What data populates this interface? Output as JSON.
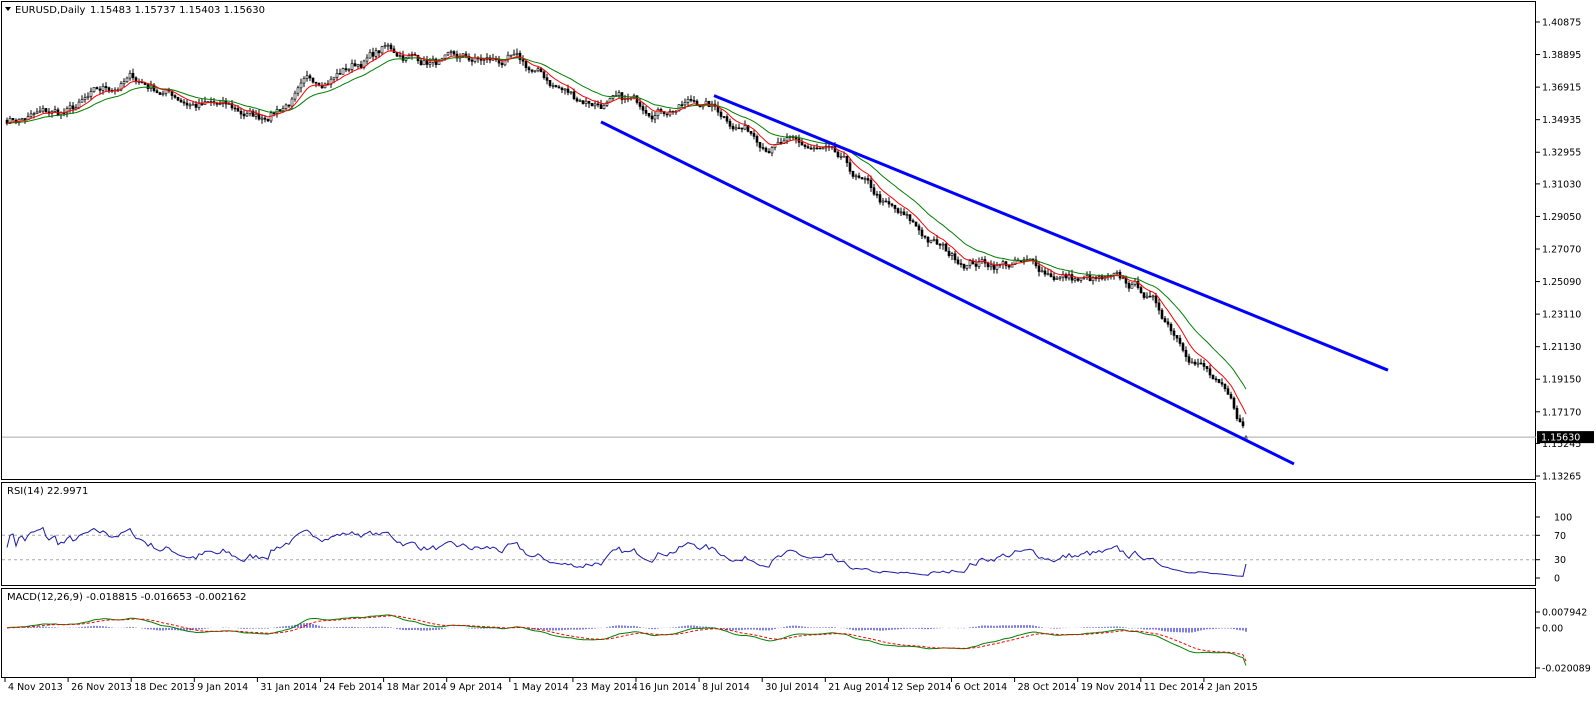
{
  "header": {
    "symbol_label": "EURUSD,Daily",
    "ohlc_label": "1.15483 1.15737 1.15403 1.15630"
  },
  "colors": {
    "candle": "#000000",
    "ema_fast": "#ff0000",
    "ma_green": "#008000",
    "ma_yellow": "#e8c000",
    "channel": "#0000ff",
    "rsi_line": "#1a1aa8",
    "macd_hist": "#0000cc",
    "macd_main": "#008000",
    "macd_signal": "#ff0000",
    "price_tag_bg": "#000000",
    "price_tag_fg": "#ffffff",
    "grid_level": "#a9a9a9"
  },
  "price_panel": {
    "y_ticks": [
      "1.40875",
      "1.38895",
      "1.36915",
      "1.34935",
      "1.32955",
      "1.31030",
      "1.29050",
      "1.27070",
      "1.25090",
      "1.23110",
      "1.21130",
      "1.19150",
      "1.17170",
      "1.15245",
      "1.13265"
    ],
    "y_min": 1.13265,
    "y_max": 1.40875,
    "current_price_label": "1.15630",
    "current_price": 1.1563
  },
  "rsi_panel": {
    "title": "RSI(14) 22.9971",
    "y_ticks": [
      "100",
      "70",
      "30",
      "0"
    ],
    "levels": [
      70,
      30
    ]
  },
  "macd_panel": {
    "title": "MACD(12,26,9) -0.018815 -0.016653 -0.002162",
    "y_ticks": [
      "0.007942",
      "0.00",
      "-0.020089"
    ],
    "y_max": 0.007942,
    "y_min": -0.020089
  },
  "x_axis": {
    "labels": [
      "4 Nov 2013",
      "26 Nov 2013",
      "18 Dec 2013",
      "9 Jan 2014",
      "31 Jan 2014",
      "24 Feb 2014",
      "18 Mar 2014",
      "9 Apr 2014",
      "1 May 2014",
      "23 May 2014",
      "16 Jun 2014",
      "8 Jul 2014",
      "30 Jul 2014",
      "21 Aug 2014",
      "12 Sep 2014",
      "6 Oct 2014",
      "28 Oct 2014",
      "19 Nov 2014",
      "11 Dec 2014",
      "2 Jan 2015"
    ]
  },
  "chart_data": {
    "type": "candlestick",
    "title": "EURUSD,Daily",
    "symbol": "EURUSD",
    "timeframe": "Daily",
    "last_bar": {
      "open": 1.15483,
      "high": 1.15737,
      "low": 1.15403,
      "close": 1.1563
    },
    "close_anchors": [
      [
        "4 Nov 2013",
        1.35
      ],
      [
        "26 Nov 2013",
        1.353
      ],
      [
        "18 Dec 2013",
        1.374
      ],
      [
        "9 Jan 2014",
        1.36
      ],
      [
        "31 Jan 2014",
        1.35
      ],
      [
        "24 Feb 2014",
        1.374
      ],
      [
        "18 Mar 2014",
        1.392
      ],
      [
        "9 Apr 2014",
        1.383
      ],
      [
        "1 May 2014",
        1.384
      ],
      [
        "23 May 2014",
        1.363
      ],
      [
        "16 Jun 2014",
        1.357
      ],
      [
        "8 Jul 2014",
        1.361
      ],
      [
        "30 Jul 2014",
        1.339
      ],
      [
        "21 Aug 2014",
        1.327
      ],
      [
        "12 Sep 2014",
        1.293
      ],
      [
        "6 Oct 2014",
        1.265
      ],
      [
        "28 Oct 2014",
        1.262
      ],
      [
        "19 Nov 2014",
        1.252
      ],
      [
        "11 Dec 2014",
        1.245
      ],
      [
        "2 Jan 2015",
        1.2
      ],
      [
        "after 2 Jan 2015",
        1.1563
      ]
    ],
    "indicators": {
      "rsi": {
        "period": 14,
        "last": 22.9971,
        "levels": [
          70,
          30
        ]
      },
      "macd": {
        "fast": 12,
        "slow": 26,
        "signal": 9,
        "main": -0.018815,
        "signal_value": -0.016653,
        "histogram": -0.002162
      }
    },
    "trendlines": [
      {
        "name": "channel-upper",
        "from": [
          "8 Jul 2014",
          1.364
        ],
        "to": [
          "Feb 2015",
          1.197
        ]
      },
      {
        "name": "channel-lower",
        "from": [
          "23 May 2014",
          1.348
        ],
        "to": [
          "Jan 2015",
          1.14
        ]
      }
    ],
    "y_range": [
      1.13265,
      1.40875
    ]
  }
}
